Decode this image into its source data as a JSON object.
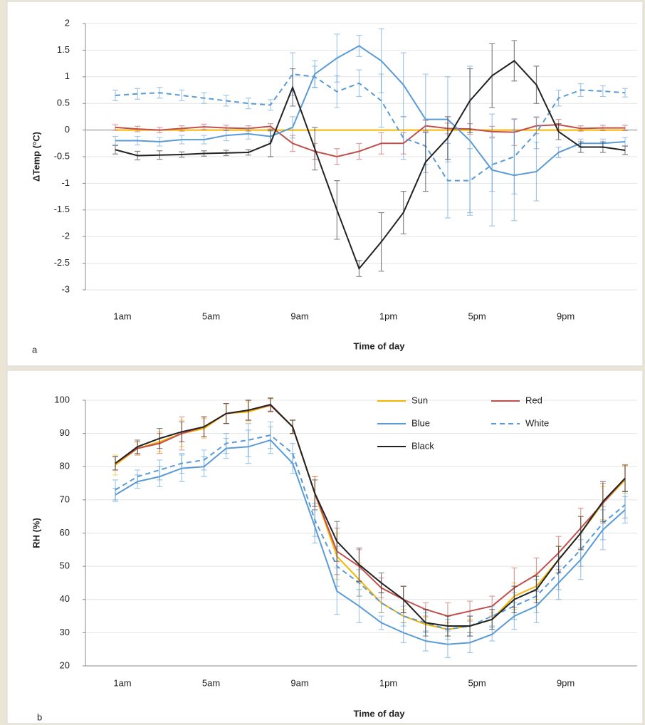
{
  "chart_data": [
    {
      "type": "line",
      "panel_label": "a",
      "xlabel": "Time of day",
      "ylabel": "ΔTemp (°C)",
      "categories": [
        "1am",
        null,
        null,
        null,
        "5am",
        null,
        null,
        null,
        "9am",
        null,
        null,
        null,
        "1pm",
        null,
        null,
        null,
        "5pm",
        null,
        null,
        null,
        "9pm",
        null,
        null,
        null
      ],
      "ylim": [
        -3,
        2
      ],
      "yticks": [
        2,
        1.5,
        1,
        0.5,
        0,
        -0.5,
        -1,
        -1.5,
        -2,
        -2.5,
        -3
      ],
      "grid": true,
      "series": [
        {
          "name": "Sun",
          "color": "#f5b400",
          "values": [
            0,
            0,
            0,
            0,
            0,
            0,
            0,
            0,
            0,
            0,
            0,
            0,
            0,
            0,
            0,
            0,
            0,
            0,
            0,
            0,
            0,
            0,
            0,
            0
          ]
        },
        {
          "name": "Red",
          "color": "#c0504d",
          "values": [
            0.05,
            0.02,
            0,
            0.03,
            0.06,
            0.04,
            0.03,
            0.07,
            -0.25,
            -0.4,
            -0.5,
            -0.4,
            -0.25,
            -0.25,
            0.08,
            0.03,
            0.02,
            -0.03,
            -0.04,
            0.08,
            0.1,
            0.03,
            0.04,
            0.04
          ],
          "errors": [
            0.05,
            0.05,
            0.05,
            0.05,
            0.05,
            0.05,
            0.05,
            0.05,
            0.15,
            0.15,
            0.15,
            0.15,
            0.2,
            0.2,
            0.1,
            0.1,
            0.1,
            0.1,
            0.25,
            0.15,
            0.1,
            0.05,
            0.05,
            0.05
          ]
        },
        {
          "name": "Blue",
          "color": "#5b9bd5",
          "values": [
            -0.2,
            -0.2,
            -0.22,
            -0.18,
            -0.18,
            -0.1,
            -0.07,
            -0.12,
            0.05,
            1.05,
            1.35,
            1.58,
            1.3,
            0.85,
            0.2,
            0.2,
            -0.2,
            -0.75,
            -0.85,
            -0.78,
            -0.42,
            -0.25,
            -0.25,
            -0.22
          ],
          "errors": [
            0.08,
            0.08,
            0.08,
            0.08,
            0.08,
            0.1,
            0.1,
            0.1,
            0.2,
            0.25,
            0.45,
            0.2,
            0.6,
            0.6,
            0.85,
            0.8,
            1.4,
            1.05,
            0.85,
            0.55,
            0.1,
            0.08,
            0.08,
            0.08
          ]
        },
        {
          "name": "White",
          "color": "#5b9bd5",
          "dash": true,
          "values": [
            0.65,
            0.68,
            0.7,
            0.65,
            0.6,
            0.55,
            0.5,
            0.47,
            1.05,
            1,
            0.72,
            0.88,
            0.55,
            -0.15,
            -0.3,
            -0.95,
            -0.95,
            -0.65,
            -0.5,
            -0.05,
            0.6,
            0.75,
            0.73,
            0.7
          ],
          "errors": [
            0.1,
            0.1,
            0.1,
            0.1,
            0.1,
            0.1,
            0.1,
            0.1,
            0.4,
            0.2,
            0.3,
            0.25,
            0.5,
            0.4,
            0.5,
            0.7,
            0.6,
            0.5,
            0.7,
            0.3,
            0.15,
            0.12,
            0.1,
            0.08
          ]
        },
        {
          "name": "Black",
          "color": "#222222",
          "values": [
            -0.37,
            -0.48,
            -0.47,
            -0.46,
            -0.44,
            -0.43,
            -0.42,
            -0.25,
            0.8,
            -0.35,
            -1.5,
            -2.6,
            -2.1,
            -1.55,
            -0.6,
            -0.15,
            0.55,
            1.02,
            1.3,
            0.85,
            -0.03,
            -0.32,
            -0.32,
            -0.38
          ],
          "errors": [
            0.08,
            0.08,
            0.08,
            0.05,
            0.05,
            0.05,
            0.05,
            0.25,
            0.35,
            0.4,
            0.55,
            0.15,
            0.55,
            0.4,
            0.55,
            0.4,
            0.6,
            0.6,
            0.38,
            0.35,
            0.15,
            0.1,
            0.1,
            0.08
          ]
        }
      ]
    },
    {
      "type": "line",
      "panel_label": "b",
      "xlabel": "Time of day",
      "ylabel": "RH (%)",
      "categories": [
        "1am",
        null,
        null,
        null,
        "5am",
        null,
        null,
        null,
        "9am",
        null,
        null,
        null,
        "1pm",
        null,
        null,
        null,
        "5pm",
        null,
        null,
        null,
        "9pm",
        null,
        null,
        null
      ],
      "ylim": [
        20,
        100
      ],
      "yticks": [
        20,
        30,
        40,
        50,
        60,
        70,
        80,
        90,
        100
      ],
      "grid": true,
      "legend": "upper right",
      "series": [
        {
          "name": "Sun",
          "color": "#f5b400",
          "values": [
            80.5,
            85.5,
            87.5,
            90,
            91.5,
            96,
            96.5,
            98.5,
            92,
            72,
            53,
            46,
            39,
            35,
            32.5,
            31,
            32,
            34,
            41,
            44,
            52,
            60,
            69,
            76
          ],
          "errors": [
            3,
            2,
            3,
            4,
            3,
            3,
            3,
            2,
            2,
            5,
            7,
            5,
            3,
            2,
            2,
            2,
            2,
            2,
            4,
            4,
            4,
            5,
            5,
            4
          ]
        },
        {
          "name": "Red",
          "color": "#c0504d",
          "values": [
            81,
            85.5,
            87,
            90,
            92,
            96,
            97,
            98.5,
            92,
            72,
            54.5,
            50,
            43.5,
            40,
            37,
            35,
            36.5,
            38,
            43.5,
            47.5,
            54,
            61.5,
            69,
            76.5
          ],
          "errors": [
            2,
            2,
            3,
            5,
            3,
            3,
            3,
            2,
            2,
            5,
            7,
            5,
            3,
            4,
            2,
            4,
            3,
            3,
            6,
            5,
            5,
            6,
            6,
            4
          ]
        },
        {
          "name": "Blue",
          "color": "#5b9bd5",
          "values": [
            71.5,
            75.5,
            77,
            79.5,
            80,
            85.5,
            86,
            88,
            81,
            62,
            42.5,
            38,
            33,
            30,
            27.5,
            26.5,
            27,
            29.5,
            35,
            38,
            45,
            52,
            61,
            67
          ],
          "errors": [
            2,
            2,
            3,
            4,
            3,
            3,
            5,
            4,
            3,
            5,
            7,
            5,
            2,
            3,
            3,
            4,
            3,
            2,
            4,
            5,
            5,
            6,
            6,
            4
          ]
        },
        {
          "name": "White",
          "color": "#5b9bd5",
          "dash": true,
          "values": [
            73,
            77,
            79,
            81,
            82,
            87,
            88,
            89.5,
            84,
            64,
            50,
            45,
            39,
            35,
            33,
            31,
            32,
            35,
            38,
            41,
            48,
            55,
            63,
            68.5
          ],
          "errors": [
            3,
            2,
            3,
            3,
            3,
            3,
            5,
            4,
            3,
            5,
            6,
            4,
            3,
            3,
            3,
            3,
            3,
            3,
            4,
            5,
            5,
            5,
            5,
            4
          ]
        },
        {
          "name": "Black",
          "color": "#222222",
          "values": [
            81,
            86,
            88.5,
            90.5,
            92,
            96,
            97,
            98.7,
            92,
            72,
            57.5,
            50.5,
            45,
            40,
            33,
            32,
            32,
            34,
            40,
            43,
            52,
            60,
            69.5,
            76.5
          ],
          "errors": [
            2,
            2,
            3,
            3,
            3,
            3,
            3,
            2,
            2,
            4,
            6,
            5,
            3,
            4,
            4,
            3,
            3,
            3,
            4,
            4,
            4,
            5,
            6,
            4
          ]
        }
      ]
    }
  ]
}
